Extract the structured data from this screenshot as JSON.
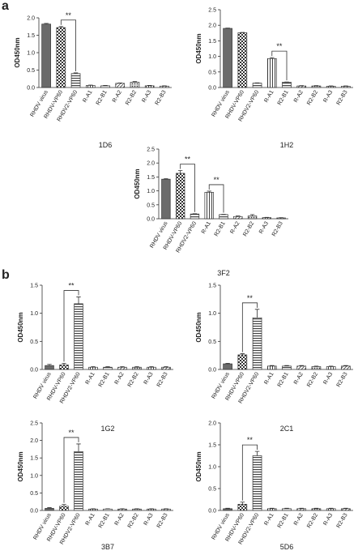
{
  "panel_labels": [
    "a",
    "b"
  ],
  "chart_data": [
    {
      "type": "bar",
      "title": "1D6",
      "y_label": "OD450nm",
      "categories": [
        "RHDV virus",
        "RHDV-VP60",
        "RHDV2-VP60",
        "R-A1",
        "R2-B1",
        "R-A2",
        "R2-B2",
        "R-A3",
        "R2-B3"
      ],
      "values": [
        1.82,
        1.72,
        0.4,
        0.06,
        0.05,
        0.12,
        0.15,
        0.05,
        0.04
      ],
      "errors": [
        0.02,
        0.03,
        0.02,
        0.01,
        0.01,
        0.01,
        0.02,
        0.01,
        0.01
      ],
      "ylim": [
        0,
        2
      ],
      "yticks": [
        {
          "value": 0,
          "label": "0.0"
        },
        {
          "value": 0.5,
          "label": "0.5"
        },
        {
          "value": 1,
          "label": "1.0"
        },
        {
          "value": 1.5,
          "label": "1.5"
        },
        {
          "value": 2,
          "label": "2.0"
        }
      ],
      "annotations": [
        {
          "text": "**",
          "between": [
            "RHDV-VP60",
            "RHDV2-VP60"
          ]
        }
      ]
    },
    {
      "type": "bar",
      "title": "1H2",
      "y_label": "OD450nm",
      "categories": [
        "RHDV virus",
        "RHDV-VP60",
        "RHDV2-VP60",
        "R-A1",
        "R2-B1",
        "R-A2",
        "R2-B2",
        "R-A3",
        "R2-B3"
      ],
      "values": [
        1.9,
        1.76,
        0.14,
        0.93,
        0.17,
        0.05,
        0.05,
        0.04,
        0.04
      ],
      "errors": [
        0.01,
        0.01,
        0.01,
        0.03,
        0.01,
        0.01,
        0.01,
        0.01,
        0.01
      ],
      "ylim": [
        0,
        2.5
      ],
      "yticks": [
        {
          "value": 0,
          "label": "0.0"
        },
        {
          "value": 0.5,
          "label": "0.5"
        },
        {
          "value": 1,
          "label": "1.0"
        },
        {
          "value": 1.5,
          "label": "1.5"
        },
        {
          "value": 2,
          "label": "2.0"
        },
        {
          "value": 2.5,
          "label": "2.5"
        }
      ],
      "annotations": [
        {
          "text": "**",
          "between": [
            "R-A1",
            "R2-B1"
          ]
        }
      ]
    },
    {
      "type": "bar",
      "title": "3F2",
      "y_label": "OD450nm",
      "categories": [
        "RHDV virus",
        "RHDV-VP60",
        "RHDV2-VP60",
        "R-A1",
        "R2-B1",
        "R-A2",
        "R2-B2",
        "R-A3",
        "R2-B3"
      ],
      "values": [
        1.42,
        1.63,
        0.17,
        0.95,
        0.15,
        0.08,
        0.1,
        0.04,
        0.03
      ],
      "errors": [
        0.02,
        0.1,
        0.01,
        0.04,
        0.01,
        0.02,
        0.05,
        0.01,
        0.01
      ],
      "ylim": [
        0,
        2.5
      ],
      "yticks": [
        {
          "value": 0,
          "label": "0.0"
        },
        {
          "value": 0.5,
          "label": "0.5"
        },
        {
          "value": 1,
          "label": "1.0"
        },
        {
          "value": 1.5,
          "label": "1.5"
        },
        {
          "value": 2,
          "label": "2.0"
        },
        {
          "value": 2.5,
          "label": "2.5"
        }
      ],
      "annotations": [
        {
          "text": "**",
          "between": [
            "RHDV-VP60",
            "RHDV2-VP60"
          ]
        },
        {
          "text": "**",
          "between": [
            "R-A1",
            "R2-B1"
          ]
        }
      ]
    },
    {
      "type": "bar",
      "title": "1G2",
      "y_label": "OD450nm",
      "categories": [
        "RHDV virus",
        "RHDV-VP60",
        "RHDV2-VP60",
        "R-A1",
        "R2-B1",
        "R-A2",
        "R2-B2",
        "R-A3",
        "R2-B3"
      ],
      "values": [
        0.07,
        0.08,
        1.17,
        0.04,
        0.04,
        0.04,
        0.04,
        0.04,
        0.04
      ],
      "errors": [
        0.02,
        0.03,
        0.12,
        0.01,
        0.01,
        0.01,
        0.01,
        0.01,
        0.01
      ],
      "ylim": [
        0,
        1.5
      ],
      "yticks": [
        {
          "value": 0,
          "label": "0.0"
        },
        {
          "value": 0.5,
          "label": "0.5"
        },
        {
          "value": 1,
          "label": "1.0"
        },
        {
          "value": 1.5,
          "label": "1.5"
        }
      ],
      "annotations": [
        {
          "text": "**",
          "between": [
            "RHDV-VP60",
            "RHDV2-VP60"
          ]
        }
      ]
    },
    {
      "type": "bar",
      "title": "2C1",
      "y_label": "OD450nm",
      "categories": [
        "RHDV virus",
        "RHDV-VP60",
        "RHDV2-VP60",
        "R-A1",
        "R2-B1",
        "R-A2",
        "R2-B2",
        "R-A3",
        "R2-B3"
      ],
      "values": [
        0.1,
        0.26,
        0.92,
        0.06,
        0.06,
        0.06,
        0.05,
        0.05,
        0.06
      ],
      "errors": [
        0.01,
        0.02,
        0.15,
        0.01,
        0.01,
        0.01,
        0.01,
        0.01,
        0.01
      ],
      "ylim": [
        0,
        1.5
      ],
      "yticks": [
        {
          "value": 0,
          "label": "0.0"
        },
        {
          "value": 0.5,
          "label": "0.5"
        },
        {
          "value": 1,
          "label": "1.0"
        },
        {
          "value": 1.5,
          "label": "1.5"
        }
      ],
      "annotations": [
        {
          "text": "**",
          "between": [
            "RHDV-VP60",
            "RHDV2-VP60"
          ]
        }
      ]
    },
    {
      "type": "bar",
      "title": "3B7",
      "y_label": "OD450nm",
      "categories": [
        "RHDV virus",
        "RHDV-VP60",
        "RHDV2-VP60",
        "R-A1",
        "R2-B1",
        "R-A2",
        "R2-B2",
        "R-A3",
        "R2-B3"
      ],
      "values": [
        0.06,
        0.12,
        1.68,
        0.04,
        0.04,
        0.04,
        0.04,
        0.04,
        0.04
      ],
      "errors": [
        0.02,
        0.05,
        0.22,
        0.01,
        0.01,
        0.01,
        0.01,
        0.01,
        0.01
      ],
      "ylim": [
        0,
        2.5
      ],
      "yticks": [
        {
          "value": 0,
          "label": "0.0"
        },
        {
          "value": 0.5,
          "label": "0.5"
        },
        {
          "value": 1,
          "label": "1.0"
        },
        {
          "value": 1.5,
          "label": "1.5"
        },
        {
          "value": 2,
          "label": "2.0"
        },
        {
          "value": 2.5,
          "label": "2.5"
        }
      ],
      "annotations": [
        {
          "text": "**",
          "between": [
            "RHDV-VP60",
            "RHDV2-VP60"
          ]
        }
      ]
    },
    {
      "type": "bar",
      "title": "5D6",
      "y_label": "OD450nm",
      "categories": [
        "RHDV virus",
        "RHDV-VP60",
        "RHDV2-VP60",
        "R-A1",
        "R2-B1",
        "R-A2",
        "R2-B2",
        "R-A3",
        "R2-B3"
      ],
      "values": [
        0.04,
        0.14,
        1.25,
        0.04,
        0.04,
        0.04,
        0.04,
        0.04,
        0.04
      ],
      "errors": [
        0.01,
        0.05,
        0.1,
        0.01,
        0.01,
        0.01,
        0.01,
        0.01,
        0.01
      ],
      "ylim": [
        0,
        2
      ],
      "yticks": [
        {
          "value": 0,
          "label": "0.0"
        },
        {
          "value": 0.5,
          "label": "0.5"
        },
        {
          "value": 1,
          "label": "1.0"
        },
        {
          "value": 1.5,
          "label": "1.5"
        },
        {
          "value": 2,
          "label": "2.0"
        }
      ],
      "annotations": [
        {
          "text": "**",
          "between": [
            "RHDV-VP60",
            "RHDV2-VP60"
          ]
        }
      ]
    }
  ]
}
